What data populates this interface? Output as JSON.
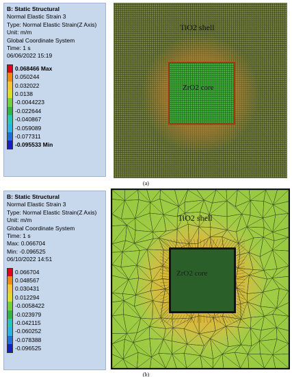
{
  "panel_a": {
    "caption": "(a)",
    "info": {
      "title": "B: Static Structural",
      "result": "Normal Elastic Strain 3",
      "type": "Type: Normal Elastic Strain(Z Axis)",
      "unit": "Unit: m/m",
      "coord": "Global Coordinate System",
      "time": "Time: 1 s",
      "date": "06/06/2022 15:19"
    },
    "legend": [
      {
        "label": "0.068466 Max",
        "color": "#e0001b",
        "bold": true
      },
      {
        "label": "0.050244",
        "color": "#f08a10",
        "bold": false
      },
      {
        "label": "0.032022",
        "color": "#f7c531",
        "bold": false
      },
      {
        "label": "0.0138",
        "color": "#d8e020",
        "bold": false
      },
      {
        "label": "-0.0044223",
        "color": "#6ed23a",
        "bold": false
      },
      {
        "label": "-0.022644",
        "color": "#2fb540",
        "bold": false
      },
      {
        "label": "-0.040867",
        "color": "#22c8b8",
        "bold": false
      },
      {
        "label": "-0.059089",
        "color": "#23b6e6",
        "bold": false
      },
      {
        "label": "-0.077311",
        "color": "#1c6fe0",
        "bold": false
      },
      {
        "label": "-0.095533 Min",
        "color": "#1320c8",
        "bold": true
      }
    ],
    "shell_label": "TiO2 shell",
    "core_label": "ZrO2 core"
  },
  "panel_b": {
    "caption": "(b)",
    "info": {
      "title": "B: Static Structural",
      "result": "Normal Elastic Strain 3",
      "type": "Type: Normal Elastic Strain(Z Axis)",
      "unit": "Unit: m/m",
      "coord": "Global Coordinate System",
      "time": "Time: 1 s",
      "max": "Max: 0.066704",
      "min": "Min: -0.096525",
      "date": "06/10/2022 14:51"
    },
    "legend": [
      {
        "label": "0.066704",
        "color": "#e0001b"
      },
      {
        "label": "0.048567",
        "color": "#f08a10"
      },
      {
        "label": "0.030431",
        "color": "#f7c531"
      },
      {
        "label": "0.012294",
        "color": "#d8e020"
      },
      {
        "label": "-0.0058422",
        "color": "#6ed23a"
      },
      {
        "label": "-0.023979",
        "color": "#2fb540"
      },
      {
        "label": "-0.042115",
        "color": "#22c8b8"
      },
      {
        "label": "-0.060252",
        "color": "#23b6e6"
      },
      {
        "label": "-0.078388",
        "color": "#1c6fe0"
      },
      {
        "label": "-0.096525",
        "color": "#1320c8"
      }
    ],
    "shell_label": "TiO2 shell",
    "core_label": "ZrO2 core"
  }
}
